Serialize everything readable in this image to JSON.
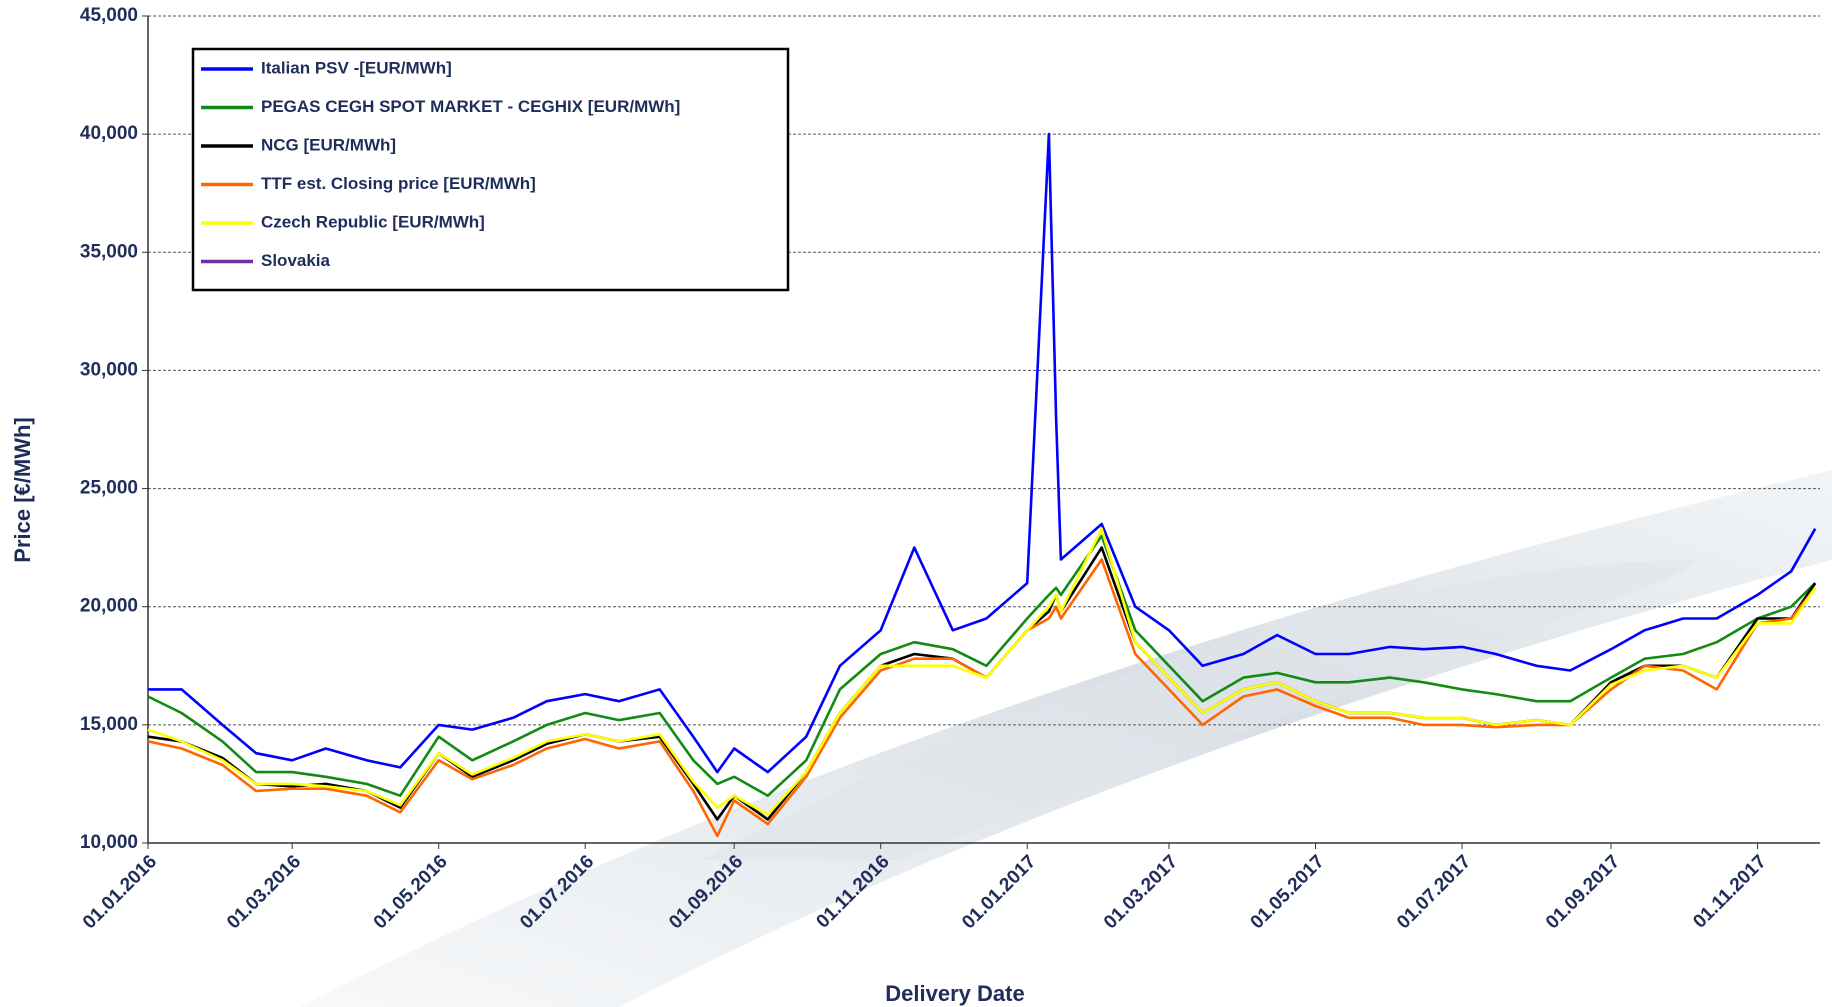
{
  "chart_data": {
    "type": "line",
    "y_label": "Price [€/MWh]",
    "x_label": "Delivery Date",
    "x": [
      "01.01.2016",
      "15.01.2016",
      "01.02.2016",
      "15.02.2016",
      "01.03.2016",
      "15.03.2016",
      "01.04.2016",
      "15.04.2016",
      "01.05.2016",
      "15.05.2016",
      "01.06.2016",
      "15.06.2016",
      "01.07.2016",
      "15.07.2016",
      "01.08.2016",
      "15.08.2016",
      "25.08.2016",
      "01.09.2016",
      "15.09.2016",
      "01.10.2016",
      "15.10.2016",
      "01.11.2016",
      "15.11.2016",
      "01.12.2016",
      "15.12.2016",
      "01.01.2017",
      "10.01.2017",
      "13.01.2017",
      "15.01.2017",
      "01.02.2017",
      "15.02.2017",
      "01.03.2017",
      "15.03.2017",
      "01.04.2017",
      "15.04.2017",
      "01.05.2017",
      "15.05.2017",
      "01.06.2017",
      "15.06.2017",
      "01.07.2017",
      "15.07.2017",
      "01.08.2017",
      "15.08.2017",
      "01.09.2017",
      "15.09.2017",
      "01.10.2017",
      "15.10.2017",
      "01.11.2017",
      "15.11.2017",
      "25.11.2017"
    ],
    "series": [
      {
        "name": "Italian PSV -[EUR/MWh]",
        "color": "#0000ff",
        "values": [
          16500,
          16500,
          15000,
          13800,
          13500,
          14000,
          13500,
          13200,
          15000,
          14800,
          15300,
          16000,
          16300,
          16000,
          16500,
          14500,
          13000,
          14000,
          13000,
          14500,
          17500,
          19000,
          22500,
          19000,
          19500,
          21000,
          40000,
          28000,
          22000,
          23500,
          20000,
          19000,
          17500,
          18000,
          18800,
          18000,
          18000,
          18300,
          18200,
          18300,
          18000,
          17500,
          17300,
          18200,
          19000,
          19500,
          19500,
          20500,
          21500,
          23300
        ]
      },
      {
        "name": "PEGAS CEGH SPOT MARKET - CEGHIX  [EUR/MWh]",
        "color": "#138a13",
        "values": [
          16200,
          15500,
          14300,
          13000,
          13000,
          12800,
          12500,
          12000,
          14500,
          13500,
          14300,
          15000,
          15500,
          15200,
          15500,
          13500,
          12500,
          12800,
          12000,
          13500,
          16500,
          18000,
          18500,
          18200,
          17500,
          19500,
          20500,
          20800,
          20500,
          23000,
          19000,
          17500,
          16000,
          17000,
          17200,
          16800,
          16800,
          17000,
          16800,
          16500,
          16300,
          16000,
          16000,
          17000,
          17800,
          18000,
          18500,
          19500,
          20000,
          21000
        ]
      },
      {
        "name": "NCG [EUR/MWh]",
        "color": "#000000",
        "values": [
          14500,
          14300,
          13600,
          12500,
          12400,
          12500,
          12200,
          11500,
          13800,
          12800,
          13500,
          14200,
          14600,
          14300,
          14500,
          12500,
          11000,
          12000,
          11000,
          13000,
          15500,
          17500,
          18000,
          17800,
          17000,
          19000,
          19800,
          20500,
          19800,
          22500,
          18500,
          17000,
          15500,
          16500,
          16800,
          16000,
          15500,
          15500,
          15300,
          15300,
          15000,
          15200,
          15000,
          16800,
          17500,
          17500,
          17000,
          19500,
          19500,
          21000
        ]
      },
      {
        "name": "TTF est. Closing price  [EUR/MWh]",
        "color": "#ff6600",
        "values": [
          14300,
          14000,
          13300,
          12200,
          12300,
          12300,
          12000,
          11300,
          13500,
          12700,
          13300,
          14000,
          14400,
          14000,
          14300,
          12200,
          10300,
          11800,
          10800,
          12800,
          15300,
          17300,
          17800,
          17800,
          17000,
          19000,
          19500,
          20000,
          19500,
          22000,
          18000,
          16500,
          15000,
          16200,
          16500,
          15800,
          15300,
          15300,
          15000,
          15000,
          14900,
          15000,
          15000,
          16500,
          17500,
          17300,
          16500,
          19300,
          19500,
          20800
        ]
      },
      {
        "name": "Czech Republic [EUR/MWh]",
        "color": "#ffff00",
        "values": [
          14800,
          14300,
          13500,
          12500,
          12500,
          12400,
          12200,
          11600,
          13800,
          12900,
          13600,
          14300,
          14600,
          14300,
          14600,
          12600,
          11500,
          12000,
          11200,
          13000,
          15500,
          17500,
          17500,
          17500,
          17000,
          19000,
          20000,
          20500,
          19800,
          23300,
          18500,
          17000,
          15500,
          16500,
          16800,
          16000,
          15500,
          15500,
          15300,
          15300,
          15000,
          15200,
          15000,
          16700,
          17300,
          17500,
          17000,
          19300,
          19300,
          20800
        ]
      },
      {
        "name": "Slovakia",
        "color": "#7030a0",
        "values": [
          null,
          null,
          null,
          null,
          null,
          null,
          null,
          null,
          null,
          null,
          null,
          null,
          null,
          null,
          null,
          null,
          null,
          null,
          null,
          null,
          null,
          null,
          null,
          null,
          null,
          null,
          null,
          null,
          null,
          null,
          null,
          null,
          null,
          null,
          null,
          null,
          null,
          null,
          null,
          null,
          null,
          null,
          null,
          null,
          null,
          null,
          null,
          null,
          null,
          null
        ]
      }
    ],
    "xlim": [
      "01.01.2016",
      "27.11.2017"
    ],
    "xticks": [
      "01.01.2016",
      "01.03.2016",
      "01.05.2016",
      "01.07.2016",
      "01.09.2016",
      "01.11.2016",
      "01.01.2017",
      "01.03.2017",
      "01.05.2017",
      "01.07.2017",
      "01.09.2017",
      "01.11.2017"
    ],
    "ylim": [
      10000,
      45000
    ],
    "yticks": [
      {
        "value": 10000,
        "label": "10,000"
      },
      {
        "value": 15000,
        "label": "15,000"
      },
      {
        "value": 20000,
        "label": "20,000"
      },
      {
        "value": 25000,
        "label": "25,000"
      },
      {
        "value": 30000,
        "label": "30,000"
      },
      {
        "value": 35000,
        "label": "35,000"
      },
      {
        "value": 40000,
        "label": "40,000"
      },
      {
        "value": 45000,
        "label": "45,000"
      }
    ],
    "grid": true,
    "legend": "upper left"
  }
}
